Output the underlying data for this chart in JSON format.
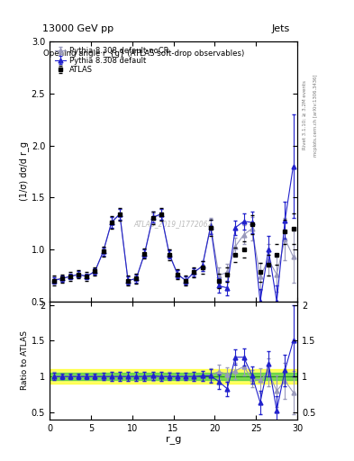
{
  "title_top": "13000 GeV pp",
  "title_right": "Jets",
  "plot_title": "Opening angle r_{g} (ATLAS soft-drop observables)",
  "ylabel_main": "(1/σ) dσ/d r_g",
  "ylabel_ratio": "Ratio to ATLAS",
  "xlabel": "r_g",
  "watermark": "ATLAS_2019_I1772062",
  "right_label1": "Rivet 3.1.10; ≥ 3.2M events",
  "right_label2": "mcplots.cern.ch [arXiv:1306.3436]",
  "xlim": [
    0,
    30
  ],
  "ylim_main": [
    0.5,
    3.0
  ],
  "ylim_ratio": [
    0.4,
    2.05
  ],
  "yticks_main": [
    0.5,
    1.0,
    1.5,
    2.0,
    2.5,
    3.0
  ],
  "yticks_ratio": [
    0.5,
    1.0,
    1.5,
    2.0
  ],
  "xticks": [
    0,
    5,
    10,
    15,
    20,
    25,
    30
  ],
  "atlas_x": [
    0.5,
    1.5,
    2.5,
    3.5,
    4.5,
    5.5,
    6.5,
    7.5,
    8.5,
    9.5,
    10.5,
    11.5,
    12.5,
    13.5,
    14.5,
    15.5,
    16.5,
    17.5,
    18.5,
    19.5,
    20.5,
    21.5,
    22.5,
    23.5,
    24.5,
    25.5,
    26.5,
    27.5,
    28.5,
    29.5
  ],
  "atlas_y": [
    0.7,
    0.72,
    0.74,
    0.76,
    0.74,
    0.79,
    0.98,
    1.26,
    1.34,
    0.7,
    0.72,
    0.96,
    1.3,
    1.34,
    0.95,
    0.76,
    0.7,
    0.78,
    0.83,
    1.21,
    0.7,
    0.76,
    0.95,
    1.0,
    1.24,
    0.78,
    0.85,
    0.95,
    1.17,
    1.2
  ],
  "atlas_yerr": [
    0.05,
    0.04,
    0.04,
    0.04,
    0.04,
    0.04,
    0.05,
    0.06,
    0.06,
    0.05,
    0.05,
    0.05,
    0.06,
    0.06,
    0.05,
    0.05,
    0.05,
    0.05,
    0.06,
    0.08,
    0.07,
    0.07,
    0.07,
    0.08,
    0.09,
    0.09,
    0.1,
    0.1,
    0.12,
    0.15
  ],
  "pythia_x": [
    0.5,
    1.5,
    2.5,
    3.5,
    4.5,
    5.5,
    6.5,
    7.5,
    8.5,
    9.5,
    10.5,
    11.5,
    12.5,
    13.5,
    14.5,
    15.5,
    16.5,
    17.5,
    18.5,
    19.5,
    20.5,
    21.5,
    22.5,
    23.5,
    24.5,
    25.5,
    26.5,
    27.5,
    28.5,
    29.5
  ],
  "pythia_y": [
    0.7,
    0.72,
    0.74,
    0.76,
    0.74,
    0.79,
    0.98,
    1.26,
    1.34,
    0.7,
    0.72,
    0.96,
    1.31,
    1.34,
    0.95,
    0.76,
    0.7,
    0.78,
    0.84,
    1.22,
    0.65,
    0.63,
    1.21,
    1.27,
    1.26,
    0.5,
    1.0,
    0.5,
    1.28,
    1.8
  ],
  "pythia_yerr": [
    0.03,
    0.03,
    0.03,
    0.03,
    0.03,
    0.03,
    0.04,
    0.05,
    0.05,
    0.04,
    0.04,
    0.04,
    0.05,
    0.05,
    0.04,
    0.04,
    0.04,
    0.04,
    0.05,
    0.07,
    0.07,
    0.07,
    0.07,
    0.08,
    0.1,
    0.12,
    0.13,
    0.15,
    0.18,
    0.5
  ],
  "nocr_x": [
    0.5,
    1.5,
    2.5,
    3.5,
    4.5,
    5.5,
    6.5,
    7.5,
    8.5,
    9.5,
    10.5,
    11.5,
    12.5,
    13.5,
    14.5,
    15.5,
    16.5,
    17.5,
    18.5,
    19.5,
    20.5,
    21.5,
    22.5,
    23.5,
    24.5,
    25.5,
    26.5,
    27.5,
    28.5,
    29.5
  ],
  "nocr_y": [
    0.71,
    0.72,
    0.74,
    0.76,
    0.74,
    0.79,
    0.98,
    1.26,
    1.34,
    0.7,
    0.72,
    0.96,
    1.3,
    1.34,
    0.96,
    0.76,
    0.7,
    0.78,
    0.84,
    1.23,
    0.75,
    0.78,
    1.03,
    1.14,
    1.2,
    0.74,
    0.9,
    0.76,
    1.1,
    0.93
  ],
  "nocr_yerr": [
    0.03,
    0.03,
    0.03,
    0.03,
    0.03,
    0.03,
    0.04,
    0.05,
    0.05,
    0.04,
    0.04,
    0.04,
    0.05,
    0.05,
    0.04,
    0.04,
    0.04,
    0.04,
    0.05,
    0.07,
    0.08,
    0.08,
    0.08,
    0.09,
    0.11,
    0.13,
    0.15,
    0.17,
    0.2,
    0.25
  ],
  "ratio_pythia_y": [
    1.0,
    1.0,
    1.0,
    1.0,
    1.0,
    1.0,
    1.0,
    1.0,
    1.0,
    1.0,
    1.0,
    1.0,
    1.01,
    1.0,
    1.0,
    1.0,
    1.0,
    1.0,
    1.01,
    1.01,
    0.93,
    0.83,
    1.27,
    1.27,
    1.02,
    0.64,
    1.18,
    0.53,
    1.09,
    1.5
  ],
  "ratio_pythia_yerr": [
    0.05,
    0.04,
    0.04,
    0.04,
    0.04,
    0.04,
    0.05,
    0.06,
    0.06,
    0.06,
    0.06,
    0.06,
    0.06,
    0.06,
    0.05,
    0.05,
    0.05,
    0.06,
    0.07,
    0.09,
    0.1,
    0.1,
    0.11,
    0.12,
    0.12,
    0.16,
    0.18,
    0.2,
    0.22,
    0.5
  ],
  "ratio_nocr_y": [
    1.01,
    1.0,
    1.0,
    1.0,
    1.0,
    1.0,
    1.0,
    1.0,
    1.0,
    1.0,
    1.0,
    1.0,
    1.0,
    1.0,
    1.01,
    1.0,
    1.0,
    1.0,
    1.01,
    1.02,
    1.07,
    1.03,
    1.08,
    1.14,
    0.97,
    0.95,
    1.06,
    0.8,
    0.94,
    0.78
  ],
  "ratio_nocr_yerr": [
    0.05,
    0.04,
    0.04,
    0.04,
    0.04,
    0.04,
    0.05,
    0.06,
    0.06,
    0.06,
    0.06,
    0.06,
    0.06,
    0.06,
    0.05,
    0.05,
    0.05,
    0.06,
    0.07,
    0.09,
    0.1,
    0.1,
    0.11,
    0.12,
    0.12,
    0.17,
    0.2,
    0.22,
    0.25,
    0.3
  ],
  "atlas_band_green": 0.05,
  "atlas_band_yellow": 0.1,
  "color_atlas": "#000000",
  "color_pythia": "#2222cc",
  "color_nocr": "#9999bb",
  "background": "#ffffff"
}
